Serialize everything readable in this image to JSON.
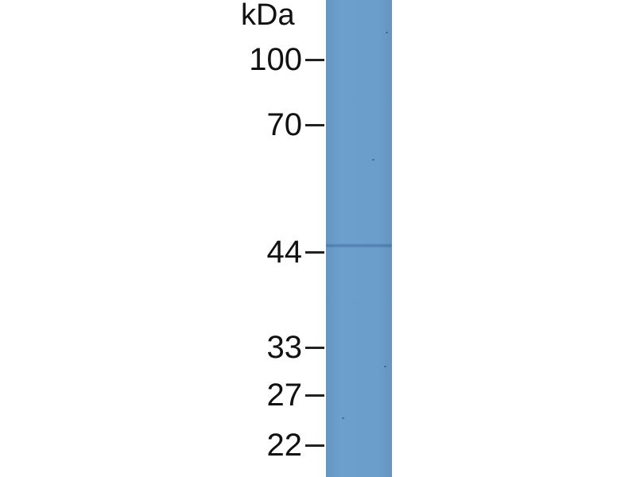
{
  "unit_label": "kDa",
  "markers": [
    {
      "label": "100",
      "kda": 100
    },
    {
      "label": "70",
      "kda": 70
    },
    {
      "label": "44",
      "kda": 44
    },
    {
      "label": "33",
      "kda": 33
    },
    {
      "label": "27",
      "kda": 27
    },
    {
      "label": "22",
      "kda": 22
    }
  ],
  "lane_color": "#6c9ecc",
  "band": {
    "kda": 45
  }
}
